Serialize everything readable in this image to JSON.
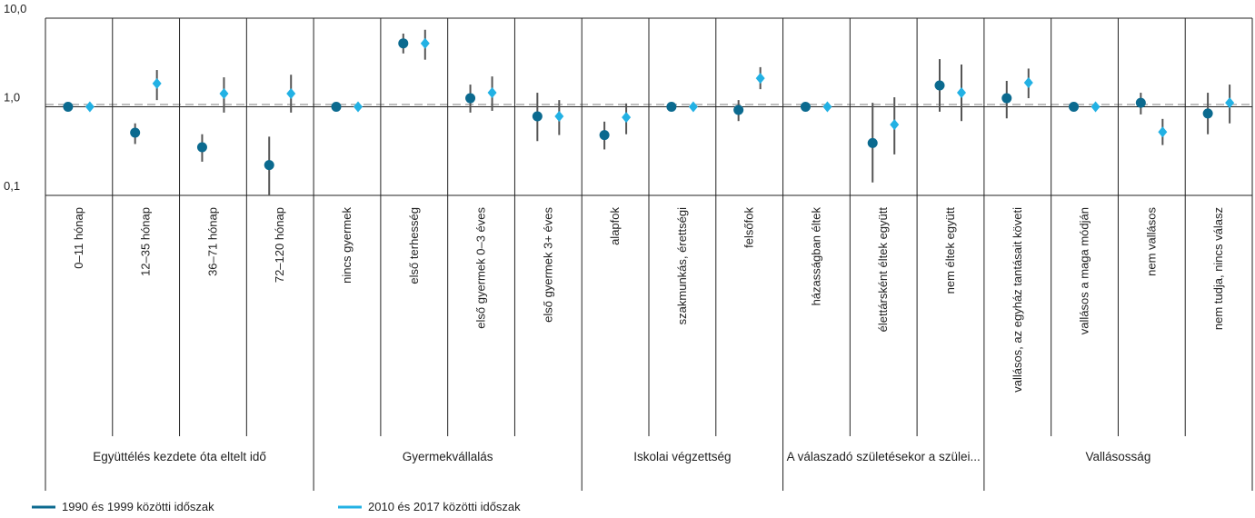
{
  "chart_data": {
    "type": "forest",
    "log_scale": true,
    "ylim": [
      0.1,
      10
    ],
    "yticks": [
      {
        "value": 10,
        "label": "10,0"
      },
      {
        "value": 1,
        "label": "1,0"
      },
      {
        "value": 0.1,
        "label": "0,1"
      }
    ],
    "reference_line": 1.06,
    "categories": [
      "0–11 hónap",
      "12–35 hónap",
      "36–71 hónap",
      "72–120 hónap",
      "nincs  gyermek",
      "első  terhesség",
      "első  gyermek 0–3 éves",
      "első  gyermek 3+ éves",
      "alapfok",
      "szakmunkás, érettségi",
      "felsőfok",
      "házasságban éltek",
      "élettársként éltek együtt",
      "nem éltek együtt",
      "vallásos, az egyház tantásait követi",
      "vallásos a maga módján",
      "nem vallásos",
      "nem tudja, nincs válasz"
    ],
    "groups": [
      {
        "name": "Együttélés kezdete óta eltelt idő",
        "size": 4
      },
      {
        "name": "Gyermekvállalás",
        "size": 4
      },
      {
        "name": "Iskolai végzettség",
        "size": 3
      },
      {
        "name": "A válaszadó születésekor a szülei...",
        "size": 3
      },
      {
        "name": "Vallásosság",
        "size": 4
      }
    ],
    "series": [
      {
        "name": "1990 és 1999 közötti időszak",
        "color": "#0b6a8f",
        "marker": "circle",
        "values": [
          1.0,
          0.51,
          0.35,
          0.22,
          1.0,
          5.2,
          1.25,
          0.78,
          0.48,
          1.0,
          0.92,
          1.0,
          0.39,
          1.74,
          1.25,
          1.0,
          1.11,
          0.84
        ],
        "lower": [
          null,
          0.38,
          0.24,
          0.1,
          null,
          4.0,
          0.86,
          0.41,
          0.33,
          null,
          0.69,
          null,
          0.14,
          0.88,
          0.74,
          null,
          0.82,
          0.49
        ],
        "upper": [
          null,
          0.65,
          0.49,
          0.46,
          null,
          6.7,
          1.78,
          1.44,
          0.68,
          null,
          1.19,
          null,
          1.11,
          3.45,
          1.96,
          null,
          1.44,
          1.44
        ]
      },
      {
        "name": "2010 és 2017 közötti időszak",
        "color": "#22b1e4",
        "marker": "diamond",
        "values": [
          1.0,
          1.83,
          1.41,
          1.41,
          1.0,
          5.2,
          1.44,
          0.78,
          0.76,
          1.0,
          2.1,
          1.0,
          0.63,
          1.44,
          1.87,
          1.0,
          0.52,
          1.11
        ],
        "lower": [
          null,
          1.19,
          0.86,
          0.86,
          null,
          3.4,
          0.9,
          0.48,
          0.49,
          null,
          1.58,
          null,
          0.29,
          0.69,
          1.25,
          null,
          0.37,
          0.65
        ],
        "upper": [
          null,
          2.6,
          2.15,
          2.3,
          null,
          7.4,
          2.2,
          1.19,
          1.09,
          null,
          2.8,
          null,
          1.28,
          3.0,
          2.7,
          null,
          0.73,
          1.78
        ]
      }
    ]
  }
}
